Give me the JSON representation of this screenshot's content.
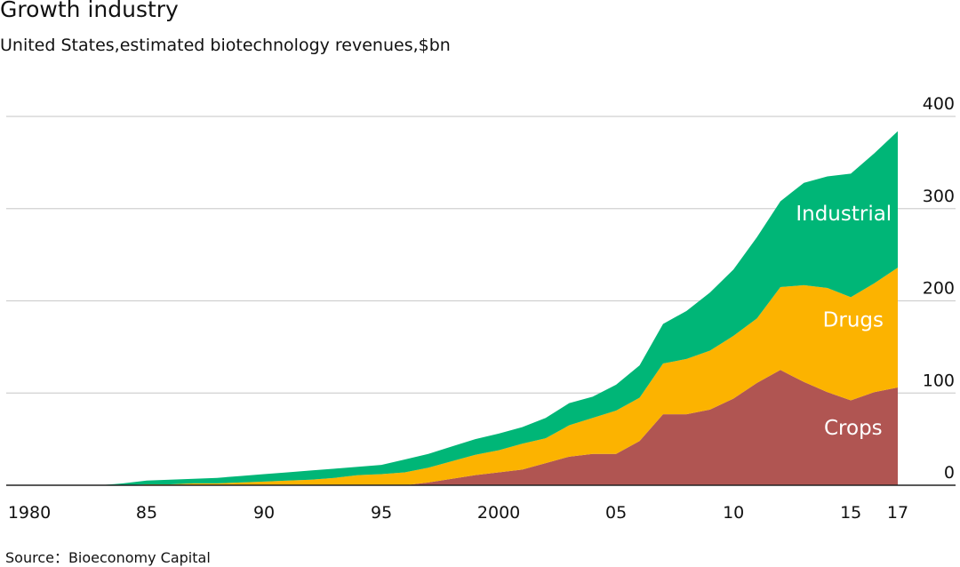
{
  "header": {
    "title": "Growth industry",
    "subtitle": "United States,estimated biotechnology revenues,$bn"
  },
  "footer": {
    "source": "Source：Bioeconomy Capital"
  },
  "chart_data": {
    "type": "area",
    "stacked": true,
    "title": "Growth industry",
    "subtitle": "United States,estimated biotechnology revenues,$bn",
    "xlabel": "",
    "ylabel": "",
    "ylim": [
      0,
      400
    ],
    "yticks": [
      0,
      100,
      200,
      300,
      400
    ],
    "y_axis_position": "right",
    "grid": true,
    "x": [
      1980,
      1981,
      1982,
      1983,
      1984,
      1985,
      1986,
      1987,
      1988,
      1989,
      1990,
      1991,
      1992,
      1993,
      1994,
      1995,
      1996,
      1997,
      1998,
      1999,
      2000,
      2001,
      2002,
      2003,
      2004,
      2005,
      2006,
      2007,
      2008,
      2009,
      2010,
      2011,
      2012,
      2013,
      2014,
      2015,
      2016,
      2017
    ],
    "xticks": [
      {
        "value": 1980,
        "label": "1980"
      },
      {
        "value": 1985,
        "label": "85"
      },
      {
        "value": 1990,
        "label": "90"
      },
      {
        "value": 1995,
        "label": "95"
      },
      {
        "value": 2000,
        "label": "2000"
      },
      {
        "value": 2005,
        "label": "05"
      },
      {
        "value": 2010,
        "label": "10"
      },
      {
        "value": 2015,
        "label": "15"
      },
      {
        "value": 2017,
        "label": "17"
      }
    ],
    "series": [
      {
        "name": "Crops",
        "color": "#b05552",
        "label_at": [
          2015.1,
          55
        ],
        "values": [
          0,
          0,
          0,
          0,
          0,
          0,
          0,
          0,
          0,
          0,
          0,
          0,
          0,
          0,
          0,
          0,
          0,
          3,
          7,
          11,
          14,
          17,
          24,
          31,
          34,
          34,
          48,
          77,
          77,
          82,
          94,
          111,
          125,
          112,
          101,
          92,
          101,
          106
        ]
      },
      {
        "name": "Drugs",
        "color": "#fcb300",
        "label_at": [
          2015.1,
          172
        ],
        "values": [
          0,
          0,
          0,
          0,
          0,
          1,
          1,
          2,
          2,
          3,
          4,
          5,
          6,
          8,
          11,
          12,
          14,
          16,
          19,
          22,
          24,
          28,
          27,
          34,
          39,
          47,
          47,
          55,
          60,
          64,
          68,
          70,
          90,
          105,
          113,
          112,
          118,
          130
        ]
      },
      {
        "name": "Industrial",
        "color": "#00b677",
        "label_at": [
          2014.7,
          287
        ],
        "values": [
          0,
          0,
          0,
          0,
          2,
          4,
          5,
          5,
          6,
          7,
          8,
          9,
          10,
          10,
          9,
          10,
          14,
          15,
          16,
          17,
          18,
          18,
          22,
          24,
          23,
          28,
          35,
          43,
          52,
          63,
          72,
          88,
          93,
          111,
          121,
          134,
          141,
          148
        ]
      }
    ]
  }
}
